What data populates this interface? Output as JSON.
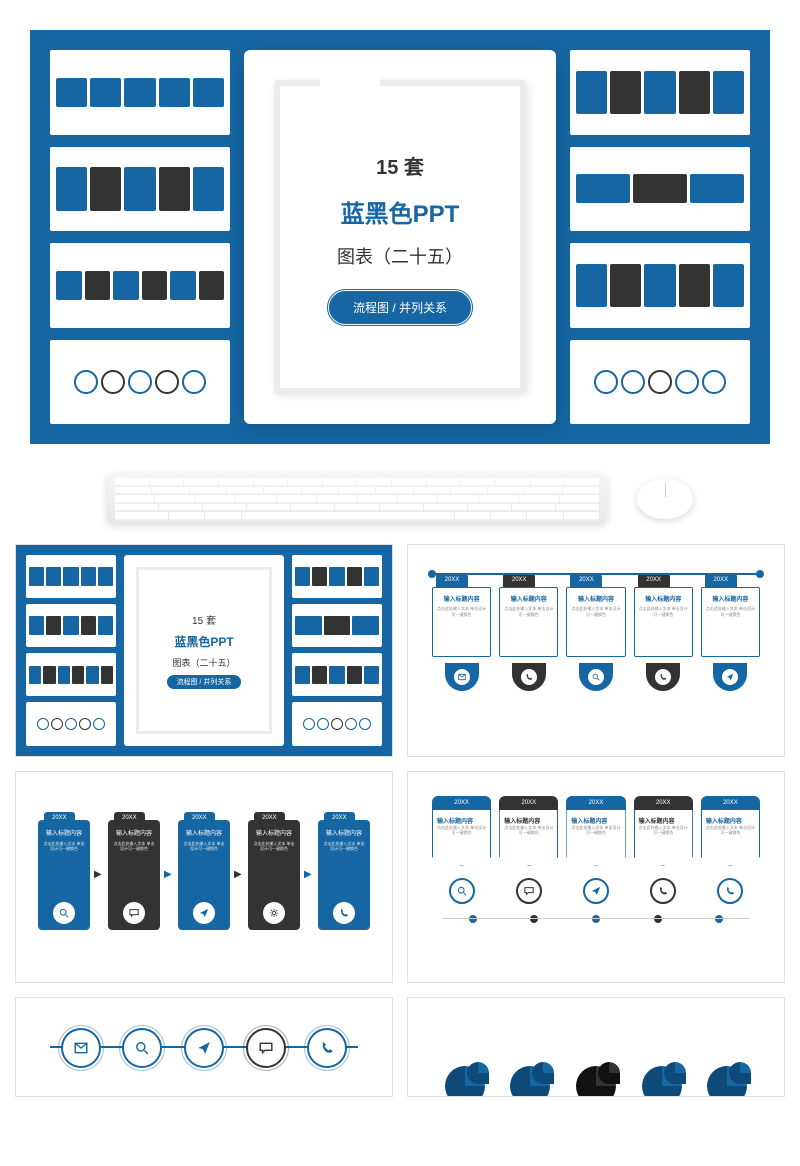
{
  "colors": {
    "primary": "#1566a3",
    "dark": "#333333",
    "white": "#ffffff",
    "grey": "#e0e0e0",
    "text_muted": "#888888"
  },
  "hero": {
    "title_line1": "15 套",
    "title_line2": "蓝黑色PPT",
    "title_line3": "图表（二十五）",
    "pill": "流程图 / 并列关系"
  },
  "card": {
    "year": "20XX",
    "title": "输入标题内容",
    "body": "点击此处输入文本\n单击设计可一键换色"
  },
  "slide2": {
    "items": [
      {
        "variant": "primary",
        "icon": "mail"
      },
      {
        "variant": "dark",
        "icon": "phone"
      },
      {
        "variant": "primary",
        "icon": "search"
      },
      {
        "variant": "dark",
        "icon": "phone"
      },
      {
        "variant": "primary",
        "icon": "plane"
      }
    ]
  },
  "slide3": {
    "items": [
      {
        "variant": "primary",
        "icon": "search"
      },
      {
        "variant": "dark",
        "icon": "chat"
      },
      {
        "variant": "primary",
        "icon": "plane"
      },
      {
        "variant": "dark",
        "icon": "gear"
      },
      {
        "variant": "primary",
        "icon": "phone"
      }
    ]
  },
  "slide4": {
    "items": [
      {
        "variant": "primary",
        "icon": "search"
      },
      {
        "variant": "dark",
        "icon": "chat"
      },
      {
        "variant": "primary",
        "icon": "plane"
      },
      {
        "variant": "dark",
        "icon": "phone"
      },
      {
        "variant": "primary",
        "icon": "phone"
      }
    ]
  },
  "slide5": {
    "items": [
      {
        "variant": "primary",
        "icon": "mail"
      },
      {
        "variant": "primary",
        "icon": "search"
      },
      {
        "variant": "primary",
        "icon": "plane"
      },
      {
        "variant": "dark",
        "icon": "chat"
      },
      {
        "variant": "primary",
        "icon": "phone"
      }
    ]
  },
  "slide6": {
    "items": [
      {
        "variant": "primary"
      },
      {
        "variant": "primary"
      },
      {
        "variant": "dark"
      },
      {
        "variant": "primary"
      },
      {
        "variant": "primary"
      }
    ]
  },
  "mini_left": [
    {
      "pattern": [
        "p",
        "p",
        "p",
        "p",
        "p"
      ]
    },
    {
      "pattern": [
        "p",
        "d",
        "p",
        "d",
        "p"
      ]
    },
    {
      "pattern": [
        "p",
        "d",
        "p",
        "d",
        "p",
        "d"
      ]
    },
    {
      "pattern": [
        "c",
        "c",
        "c",
        "c",
        "c"
      ]
    }
  ],
  "mini_right": [
    {
      "pattern": [
        "p",
        "d",
        "p",
        "d",
        "p"
      ]
    },
    {
      "pattern": [
        "p",
        "d",
        "p"
      ]
    },
    {
      "pattern": [
        "p",
        "d",
        "p",
        "d",
        "p"
      ]
    },
    {
      "pattern": [
        "p",
        "p",
        "d",
        "p",
        "p"
      ]
    }
  ]
}
